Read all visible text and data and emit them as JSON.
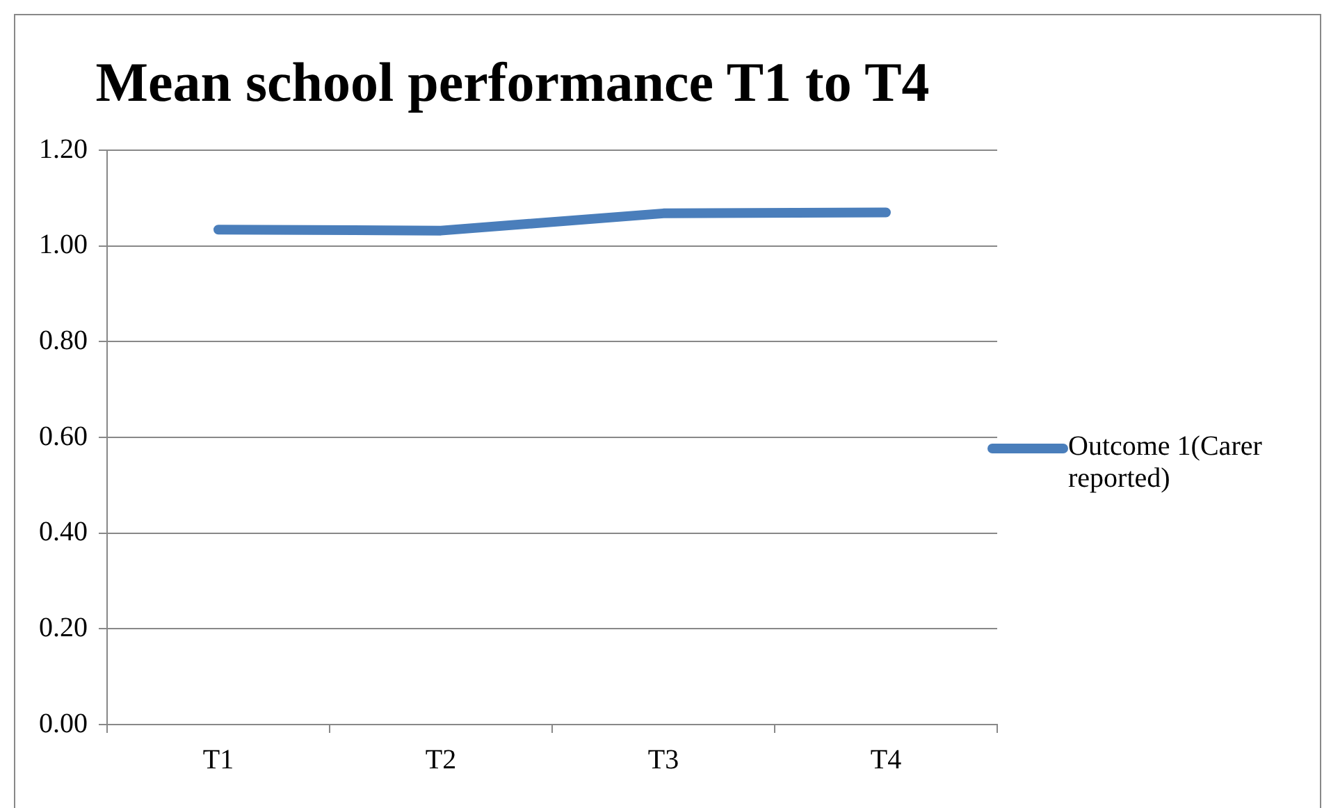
{
  "chart_data": {
    "type": "line",
    "title": "Mean school performance T1 to T4",
    "categories": [
      "T1",
      "T2",
      "T3",
      "T4"
    ],
    "series": [
      {
        "name": "Outcome 1(Carer reported)",
        "color": "#4a7ebb",
        "values": [
          1.034,
          1.032,
          1.068,
          1.07
        ]
      }
    ],
    "ylim": [
      0,
      1.2
    ],
    "yticks": [
      {
        "value": 0,
        "label": "0.00"
      },
      {
        "value": 0.2,
        "label": "0.20"
      },
      {
        "value": 0.4,
        "label": "0.40"
      },
      {
        "value": 0.6,
        "label": "0.60"
      },
      {
        "value": 0.8,
        "label": "0.80"
      },
      {
        "value": 1,
        "label": "1.00"
      },
      {
        "value": 1.2,
        "label": "1.20"
      }
    ],
    "grid": "y",
    "legend": "right",
    "marker": "none",
    "line_style": "solid"
  }
}
